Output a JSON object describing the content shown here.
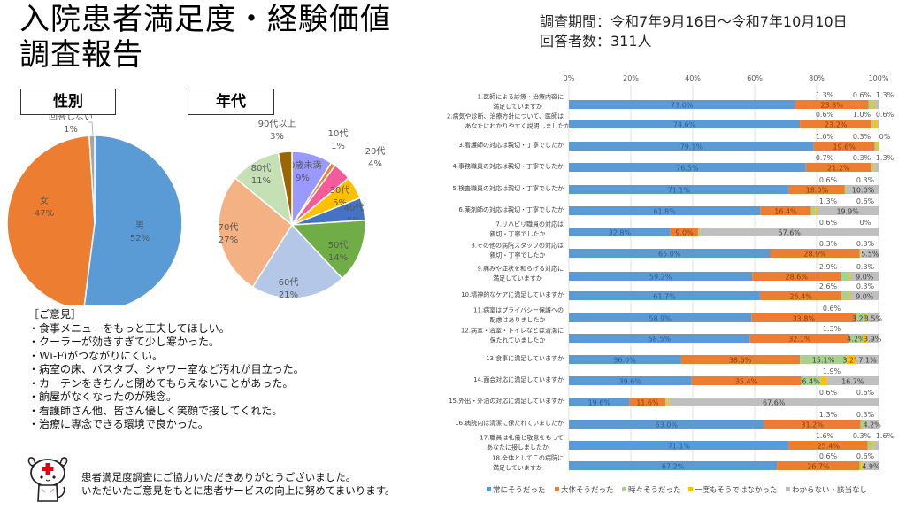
{
  "header": {
    "title_line1": "入院患者満足度・経験価値",
    "title_line2": "調査報告",
    "period": "調査期間：令和7年9月16日～令和7年10月10日",
    "respondents": "回答者数：311人"
  },
  "chart_data": [
    {
      "type": "pie",
      "title": "性別",
      "slices": [
        {
          "label": "男",
          "value": 52,
          "color": "#5b9bd5"
        },
        {
          "label": "女",
          "value": 47,
          "color": "#ed7d31"
        },
        {
          "label": "回答しない",
          "value": 1,
          "color": "#a5a5a5"
        }
      ]
    },
    {
      "type": "pie",
      "title": "年代",
      "slices": [
        {
          "label": "10歳未満",
          "value": 9,
          "color": "#9999ff"
        },
        {
          "label": "10代",
          "value": 1,
          "color": "#ed7d31"
        },
        {
          "label": "20代",
          "value": 4,
          "color": "#f45b9a"
        },
        {
          "label": "30代",
          "value": 5,
          "color": "#ffc000"
        },
        {
          "label": "40代",
          "value": 5,
          "color": "#4472c4"
        },
        {
          "label": "50代",
          "value": 14,
          "color": "#70ad47"
        },
        {
          "label": "60代",
          "value": 21,
          "color": "#b4c7e7"
        },
        {
          "label": "70代",
          "value": 27,
          "color": "#f4b183"
        },
        {
          "label": "80代",
          "value": 11,
          "color": "#c5e0b4"
        },
        {
          "label": "90代以上",
          "value": 3,
          "color": "#996600"
        }
      ]
    },
    {
      "type": "bar",
      "orientation": "horizontal-stacked-100",
      "xlim": [
        0,
        100
      ],
      "ticks": [
        "0%",
        "20%",
        "40%",
        "60%",
        "80%",
        "100%"
      ],
      "grid": true,
      "legend_position": "bottom",
      "series": [
        {
          "name": "常にそうだった",
          "color": "#5b9bd5"
        },
        {
          "name": "大体そうだった",
          "color": "#ed7d31"
        },
        {
          "name": "時々そうだった",
          "color": "#a9d18e"
        },
        {
          "name": "一度もそうではなかった",
          "color": "#ffc000"
        },
        {
          "name": "わからない・該当なし",
          "color": "#bfbfbf"
        }
      ],
      "categories": [
        {
          "label": [
            "1.医師による診療・治療内容に",
            "満足していますか"
          ],
          "values": [
            73.0,
            23.8,
            1.3,
            0.6,
            1.3
          ]
        },
        {
          "label": [
            "2.病気や診断、治療方針について、医師は",
            "あなたにわかりやすく説明しましたか"
          ],
          "values": [
            74.6,
            23.2,
            0.6,
            1.0,
            0.6
          ]
        },
        {
          "label": [
            "3.看護師の対応は親切・丁寧でしたか"
          ],
          "values": [
            79.1,
            19.6,
            1.0,
            0.3,
            0
          ]
        },
        {
          "label": [
            "4.事務職員の対応は親切・丁寧でしたか"
          ],
          "values": [
            76.5,
            21.2,
            0.7,
            0.3,
            1.3
          ]
        },
        {
          "label": [
            "5.検査職員の対応は親切・丁寧でしたか"
          ],
          "values": [
            71.1,
            18.0,
            0.6,
            0.3,
            10.0
          ]
        },
        {
          "label": [
            "6.薬剤師の対応は親切・丁寧でしたか"
          ],
          "values": [
            61.8,
            16.4,
            1.3,
            0.6,
            19.9
          ]
        },
        {
          "label": [
            "7.リハビリ職員の対応は",
            "親切・丁寧でしたか"
          ],
          "values": [
            32.8,
            9.0,
            0.6,
            0,
            57.6
          ]
        },
        {
          "label": [
            "8.その他の病院スタッフの対応は",
            "親切・丁寧でしたか"
          ],
          "values": [
            65.0,
            28.9,
            0.3,
            0.3,
            5.5
          ]
        },
        {
          "label": [
            "9.痛みや症状を和らげる対応に",
            "満足していますか"
          ],
          "values": [
            59.2,
            28.6,
            2.9,
            0.3,
            9.0
          ]
        },
        {
          "label": [
            "10.精神的なケアに満足していますか"
          ],
          "values": [
            61.7,
            26.4,
            2.6,
            0.3,
            9.0
          ]
        },
        {
          "label": [
            "11.病室はプライバシー保護への",
            "配慮はありましたか"
          ],
          "values": [
            58.9,
            33.8,
            3.2,
            0.6,
            3.5
          ]
        },
        {
          "label": [
            "12.病室・浴室・トイレなどは清潔に",
            "保たれていましたか"
          ],
          "values": [
            58.5,
            32.1,
            4.2,
            1.3,
            3.9
          ]
        },
        {
          "label": [
            "13.食事に満足していますか"
          ],
          "values": [
            36.0,
            38.6,
            15.1,
            3.2,
            7.1
          ]
        },
        {
          "label": [
            "14.面会対応に満足していますか"
          ],
          "values": [
            39.6,
            35.4,
            6.4,
            1.9,
            16.7
          ]
        },
        {
          "label": [
            "15.外出・外泊の対応に満足していますか"
          ],
          "values": [
            19.6,
            11.6,
            0.6,
            0.6,
            67.6
          ]
        },
        {
          "label": [
            "16.病院内は清潔に保たれていましたか"
          ],
          "values": [
            63.0,
            31.2,
            1.3,
            0.3,
            4.2
          ]
        },
        {
          "label": [
            "17.職員は礼儀と敬意をもって",
            "あなたに接しましたか"
          ],
          "values": [
            71.1,
            25.4,
            1.6,
            0.3,
            1.6
          ]
        },
        {
          "label": [
            "18.全体としてこの病院に",
            "満足していますか"
          ],
          "values": [
            67.2,
            26.7,
            0.6,
            0.6,
            4.9
          ]
        }
      ]
    }
  ],
  "opinions": {
    "heading": "［ご意見］",
    "items": [
      "・食事メニューをもっと工夫してほしい。",
      "・クーラーが効きすぎて少し寒かった。",
      "・Wi-Fiがつながりにくい。",
      "・病室の床、バスタブ、シャワー室など汚れが目立った。",
      "・カーテンをきちんと閉めてもらえないことがあった。",
      "・餉屋がなくなったのが残念。",
      "・看護師さん他、皆さん優しく笑顔で接してくれた。",
      "・治療に専念できる環境で良かった。"
    ]
  },
  "footer": {
    "mascot_icon": "cat-nurse-mascot-icon",
    "thanks_line1": "患者満足度調査にご協力いただきありがとうございました。",
    "thanks_line2": "いただいたご意見をもとに患者サービスの向上に努めてまいります。"
  }
}
